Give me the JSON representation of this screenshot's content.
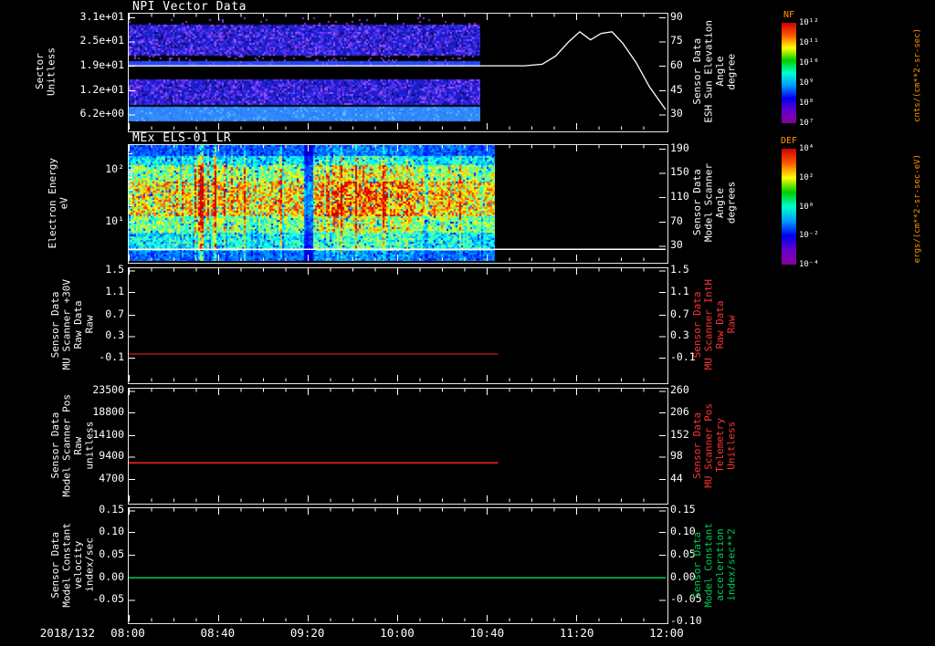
{
  "figure": {
    "background": "#000000",
    "text_color": "#ffffff",
    "date_label": "2018/132",
    "x_axis": {
      "tick_labels": [
        "08:00",
        "08:40",
        "09:20",
        "10:00",
        "10:40",
        "11:20",
        "12:00"
      ],
      "tick_hours": [
        8,
        8.6667,
        9.3333,
        10,
        10.6667,
        11.3333,
        12
      ],
      "range_hours": [
        8,
        12
      ]
    }
  },
  "colorbars": [
    {
      "title": "NF",
      "title_color": "#ff9900",
      "unit": "cnts/(cm**2-sr-sec)",
      "tick_labels": [
        "10¹²",
        "10¹¹",
        "10¹⁰",
        "10⁹",
        "10⁸",
        "10⁷"
      ],
      "gradient": [
        "#cc0000",
        "#ff5500",
        "#ffff00",
        "#00cc00",
        "#00ffcc",
        "#0099ff",
        "#0000ee",
        "#6600cc",
        "#880099"
      ]
    },
    {
      "title": "DEF",
      "title_color": "#ff9900",
      "unit": "ergs/(cm**2-sr-sec-eV)",
      "tick_labels": [
        "10⁴",
        "10²",
        "10⁰",
        "10⁻²",
        "10⁻⁴"
      ],
      "gradient": [
        "#cc0000",
        "#ff5500",
        "#ffff00",
        "#00cc00",
        "#00ffcc",
        "#0099ff",
        "#0000ee",
        "#6600cc",
        "#880099"
      ]
    }
  ],
  "chart_data": [
    {
      "id": "npi-vector",
      "type": "heatmap",
      "title": "NPI Vector Data",
      "left_label": "Sector\nUnitless",
      "left_ticks": {
        "labels": [
          "3.1e+01",
          "2.5e+01",
          "1.9e+01",
          "1.2e+01",
          "6.2e+00"
        ],
        "fracs": [
          0.03,
          0.24,
          0.45,
          0.66,
          0.87
        ]
      },
      "right_label": "Sensor Data\nESH Sun Elevation\nAngle\ndegree",
      "right_label_color": "#ffffff",
      "right_ticks": {
        "labels": [
          "90",
          "75",
          "60",
          "45",
          "30"
        ],
        "fracs": [
          0.03,
          0.24,
          0.45,
          0.66,
          0.87
        ]
      },
      "heatmap": {
        "style": "npi",
        "t_start": 8.0,
        "t_end": 10.62
      },
      "line": {
        "color": "#ffffff",
        "axis": "right",
        "t": [
          8.0,
          10.95,
          11.08,
          11.18,
          11.28,
          11.36,
          11.44,
          11.52,
          11.6,
          11.68,
          11.78,
          11.88,
          12.0
        ],
        "deg": [
          60,
          60,
          61,
          66,
          75,
          81,
          76,
          80,
          81,
          74,
          62,
          47,
          33
        ]
      }
    },
    {
      "id": "mex-els-01-lr",
      "type": "heatmap",
      "title": "MEx ELS-01 LR",
      "left_label": "Electron Energy\neV",
      "left_ticks": {
        "labels": [
          "10²",
          "10¹"
        ],
        "fracs": [
          0.21,
          0.66
        ]
      },
      "right_label": "Sensor Data\nModel Scanner\nAngle\ndegrees",
      "right_label_color": "#ffffff",
      "right_ticks": {
        "labels": [
          "190",
          "150",
          "110",
          "70",
          "30"
        ],
        "fracs": [
          0.03,
          0.24,
          0.45,
          0.66,
          0.87
        ]
      },
      "heatmap": {
        "style": "els",
        "t_start": 8.0,
        "t_end": 10.73
      },
      "hline": {
        "color": "#ffffff",
        "value": null,
        "y_frac": 0.895,
        "t_start": 8.0,
        "t_end": 12.0
      }
    },
    {
      "id": "mu-scanner-30v",
      "type": "line",
      "title": "",
      "left_label": "Sensor Data\nMU Scanner +30V\nRaw Data\nRaw",
      "left_ticks": {
        "labels": [
          "1.5",
          "1.1",
          "0.7",
          "0.3",
          "-0.1"
        ],
        "fracs": [
          0.02,
          0.21,
          0.41,
          0.6,
          0.79
        ]
      },
      "right_label": "Sensor Data\nMU Scanner IntH\nRaw Data\nRaw",
      "right_label_color": "#ff3333",
      "right_ticks": {
        "labels": [
          "1.5",
          "1.1",
          "0.7",
          "0.3",
          "-0.1"
        ],
        "fracs": [
          0.02,
          0.21,
          0.41,
          0.6,
          0.79
        ]
      },
      "hline": {
        "color": "#ff2222",
        "value": 0.0,
        "y_frac": 0.754,
        "t_start": 8.0,
        "t_end": 10.75
      }
    },
    {
      "id": "model-scanner-pos",
      "type": "line",
      "title": "",
      "left_label": "Sensor Data\nModel Scanner Pos\nRaw\nunitless",
      "left_ticks": {
        "labels": [
          "23500",
          "18800",
          "14100",
          "9400",
          "4700"
        ],
        "fracs": [
          0.02,
          0.21,
          0.41,
          0.6,
          0.8
        ]
      },
      "right_label": "Sensor Data\nMU Scanner Pos\nTelemetry\nUnitless",
      "right_label_color": "#ff3333",
      "right_ticks": {
        "labels": [
          "260",
          "206",
          "152",
          "98",
          "44"
        ],
        "fracs": [
          0.02,
          0.21,
          0.41,
          0.6,
          0.8
        ]
      },
      "hline": {
        "color": "#ff2222",
        "value": 8800,
        "y_frac": 0.651,
        "t_start": 8.0,
        "t_end": 10.75
      }
    },
    {
      "id": "model-constant-velocity",
      "type": "line",
      "title": "",
      "left_label": "Sensor Data\nModel Constant\nvelocity\nindex/sec",
      "left_ticks": {
        "labels": [
          "0.15",
          "0.10",
          "0.05",
          "0.00",
          "-0.05"
        ],
        "fracs": [
          0.02,
          0.21,
          0.41,
          0.61,
          0.81
        ]
      },
      "right_label": "Sensor Data\nModel Constant\nacceleration\nindex/sec**2",
      "right_label_color": "#00cc55",
      "right_ticks": {
        "labels": [
          "0.15",
          "0.10",
          "0.05",
          "0.00",
          "-0.05",
          "-0.10"
        ],
        "fracs": [
          0.02,
          0.21,
          0.41,
          0.61,
          0.81,
          1.0
        ]
      },
      "hline": {
        "color": "#00cc55",
        "value": 0.0,
        "y_frac": 0.611,
        "t_start": 8.0,
        "t_end": 12.0
      }
    }
  ]
}
